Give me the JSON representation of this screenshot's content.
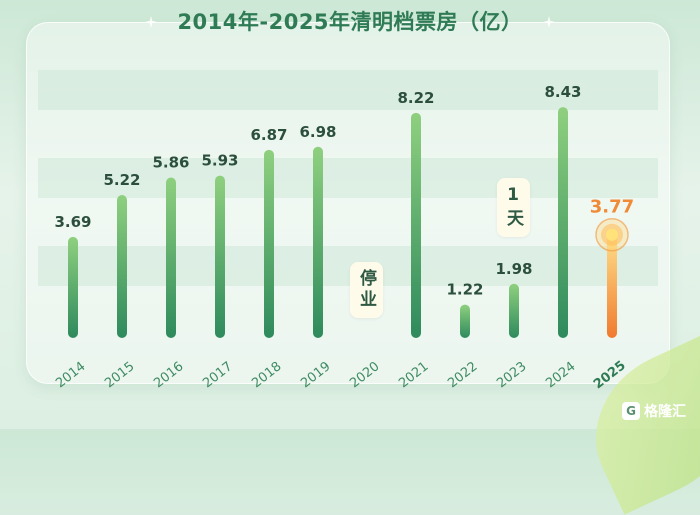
{
  "chart_data": {
    "type": "bar",
    "title": "2014年-2025年清明档票房（亿）",
    "categories": [
      "2014",
      "2015",
      "2016",
      "2017",
      "2018",
      "2019",
      "2020",
      "2021",
      "2022",
      "2023",
      "2024",
      "2025"
    ],
    "values": [
      3.69,
      5.22,
      5.86,
      5.93,
      6.87,
      6.98,
      null,
      8.22,
      1.22,
      1.98,
      8.43,
      3.77
    ],
    "value_labels": [
      "3.69",
      "5.22",
      "5.86",
      "5.93",
      "6.87",
      "6.98",
      "",
      "8.22",
      "1.22",
      "1.98",
      "8.43",
      "3.77"
    ],
    "highlight_category": "2025",
    "ylim": [
      0,
      9.2
    ],
    "xlabel": "",
    "ylabel": "",
    "grid": true,
    "annotations": [
      {
        "category": "2020",
        "text": "停业"
      },
      {
        "category": "2023",
        "text": "1天"
      }
    ],
    "colors": {
      "bar_top": "#8fd07f",
      "bar_bottom": "#2e8a5c",
      "highlight_top": "#ffe08a",
      "highlight_bottom": "#f07a2e",
      "highlight_label": "#f08a36"
    }
  },
  "watermark": {
    "icon": "G",
    "text": "格隆汇"
  }
}
